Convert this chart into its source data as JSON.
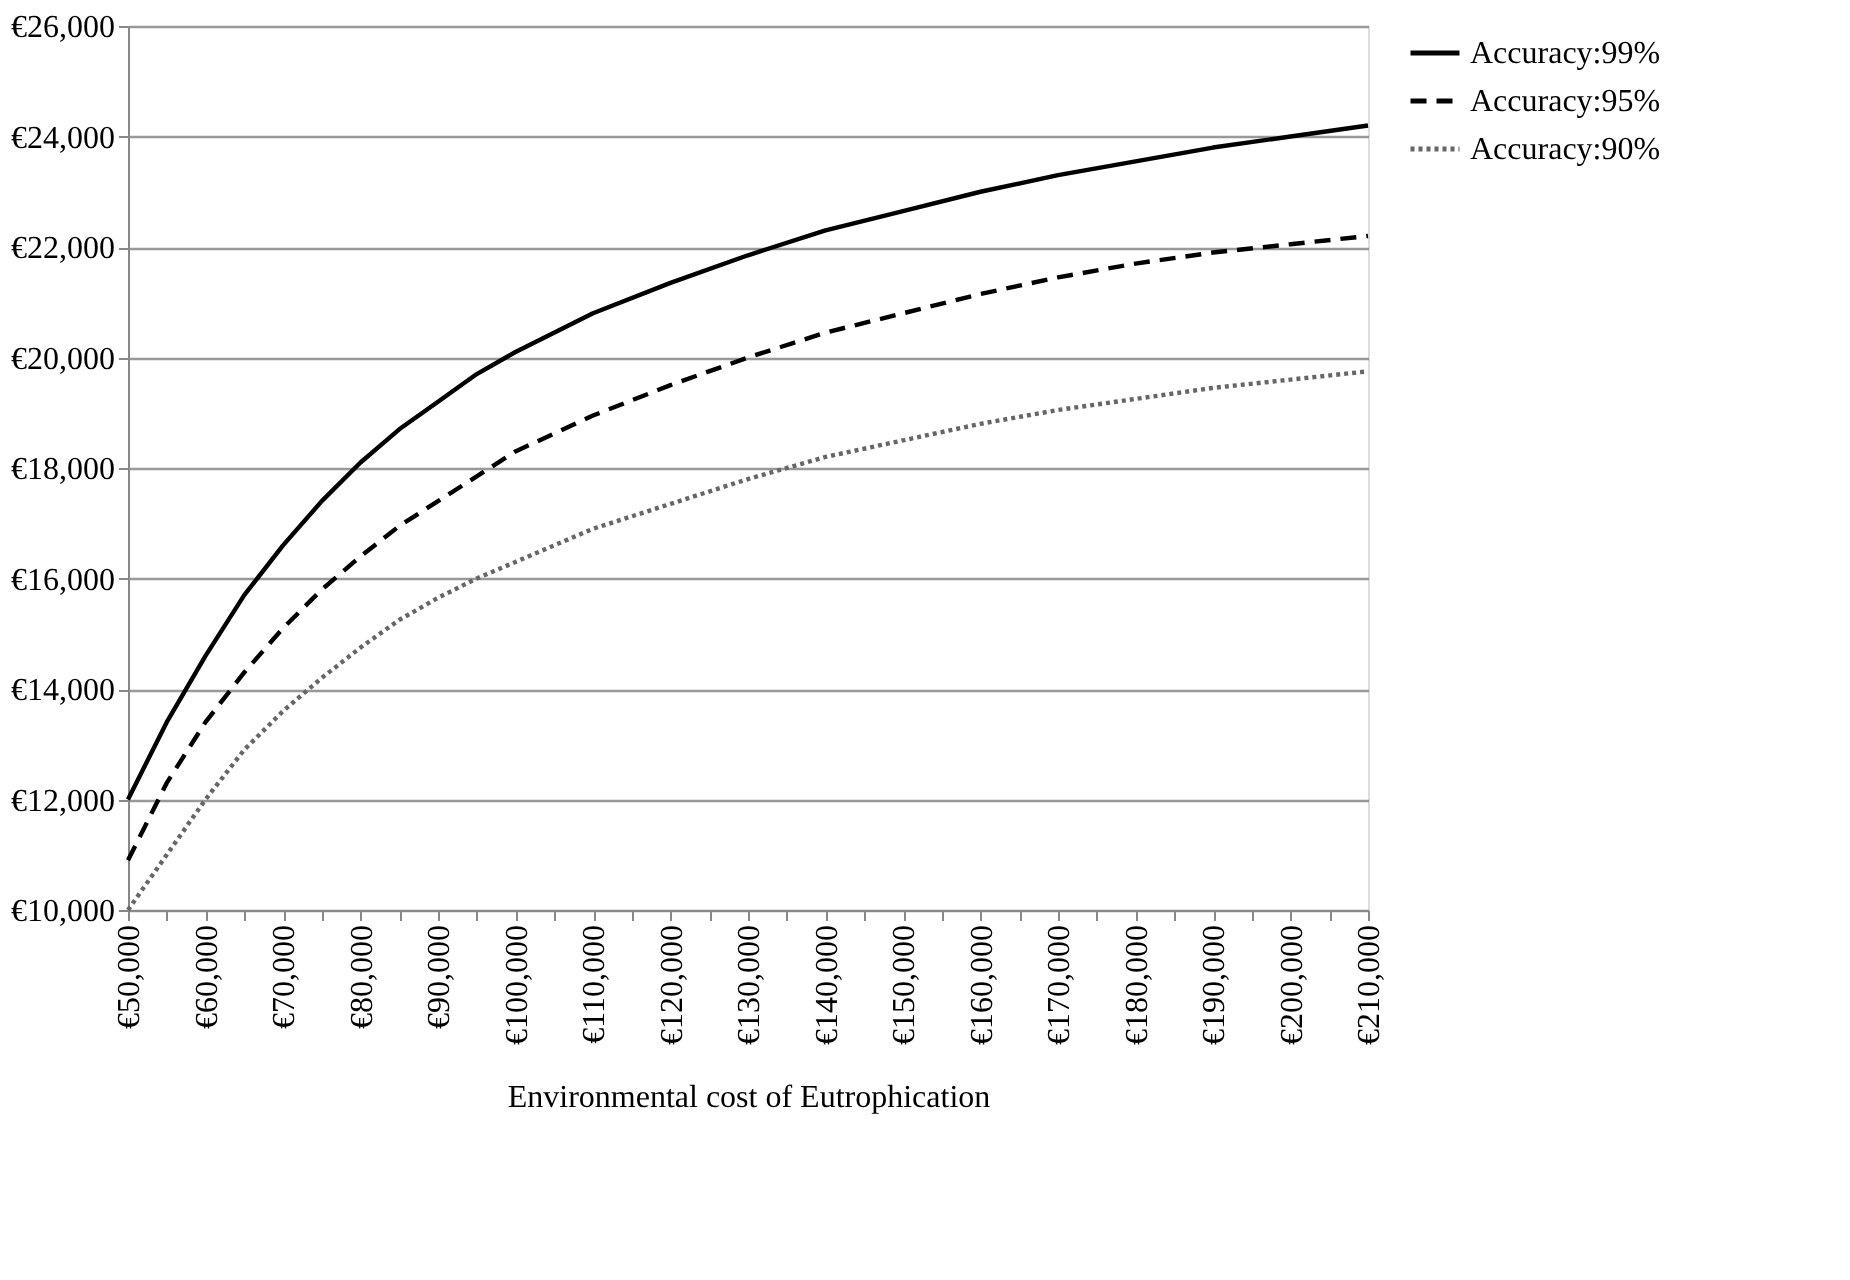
{
  "chart_data": {
    "type": "line",
    "xlabel": "Environmental cost of Eutrophication",
    "x": [
      50000,
      55000,
      60000,
      65000,
      70000,
      75000,
      80000,
      85000,
      90000,
      95000,
      100000,
      110000,
      120000,
      130000,
      140000,
      150000,
      160000,
      170000,
      180000,
      190000,
      200000,
      210000
    ],
    "series": [
      {
        "name": "Accuracy:99%",
        "color": "#000000",
        "line_style": "solid",
        "values": [
          12000,
          13400,
          14600,
          15700,
          16600,
          17400,
          18100,
          18700,
          19200,
          19700,
          20100,
          20800,
          21350,
          21850,
          22300,
          22650,
          23000,
          23300,
          23550,
          23800,
          24000,
          24200
        ]
      },
      {
        "name": "Accuracy:95%",
        "color": "#000000",
        "line_style": "dashed",
        "values": [
          10900,
          12300,
          13400,
          14300,
          15100,
          15800,
          16400,
          16950,
          17400,
          17850,
          18300,
          18950,
          19500,
          20000,
          20450,
          20800,
          21150,
          21450,
          21700,
          21900,
          22050,
          22200
        ]
      },
      {
        "name": "Accuracy:90%",
        "color": "#666666",
        "line_style": "dotted",
        "values": [
          10000,
          11000,
          12000,
          12900,
          13600,
          14200,
          14750,
          15250,
          15650,
          16000,
          16300,
          16900,
          17350,
          17800,
          18200,
          18500,
          18800,
          19050,
          19250,
          19450,
          19600,
          19750
        ]
      }
    ],
    "xlim": [
      50000,
      210000
    ],
    "xticks": [
      {
        "value": 50000,
        "label": "€50,000"
      },
      {
        "value": 55000,
        "label": null
      },
      {
        "value": 60000,
        "label": "€60,000"
      },
      {
        "value": 65000,
        "label": null
      },
      {
        "value": 70000,
        "label": "€70,000"
      },
      {
        "value": 75000,
        "label": null
      },
      {
        "value": 80000,
        "label": "€80,000"
      },
      {
        "value": 85000,
        "label": null
      },
      {
        "value": 90000,
        "label": "€90,000"
      },
      {
        "value": 95000,
        "label": null
      },
      {
        "value": 100000,
        "label": "€100,000"
      },
      {
        "value": 105000,
        "label": null
      },
      {
        "value": 110000,
        "label": "€110,000"
      },
      {
        "value": 115000,
        "label": null
      },
      {
        "value": 120000,
        "label": "€120,000"
      },
      {
        "value": 125000,
        "label": null
      },
      {
        "value": 130000,
        "label": "€130,000"
      },
      {
        "value": 135000,
        "label": null
      },
      {
        "value": 140000,
        "label": "€140,000"
      },
      {
        "value": 145000,
        "label": null
      },
      {
        "value": 150000,
        "label": "€150,000"
      },
      {
        "value": 155000,
        "label": null
      },
      {
        "value": 160000,
        "label": "€160,000"
      },
      {
        "value": 165000,
        "label": null
      },
      {
        "value": 170000,
        "label": "€170,000"
      },
      {
        "value": 175000,
        "label": null
      },
      {
        "value": 180000,
        "label": "€180,000"
      },
      {
        "value": 185000,
        "label": null
      },
      {
        "value": 190000,
        "label": "€190,000"
      },
      {
        "value": 195000,
        "label": null
      },
      {
        "value": 200000,
        "label": "€200,000"
      },
      {
        "value": 205000,
        "label": null
      },
      {
        "value": 210000,
        "label": "€210,000"
      }
    ],
    "ylim": [
      10000,
      26000
    ],
    "yticks": [
      {
        "value": 10000,
        "label": "€10,000"
      },
      {
        "value": 12000,
        "label": "€12,000"
      },
      {
        "value": 14000,
        "label": "€14,000"
      },
      {
        "value": 16000,
        "label": "€16,000"
      },
      {
        "value": 18000,
        "label": "€18,000"
      },
      {
        "value": 20000,
        "label": "€20,000"
      },
      {
        "value": 22000,
        "label": "€22,000"
      },
      {
        "value": 24000,
        "label": "€24,000"
      },
      {
        "value": 26000,
        "label": "€26,000"
      }
    ],
    "grid": "y",
    "legend": "right",
    "marker": "none"
  }
}
